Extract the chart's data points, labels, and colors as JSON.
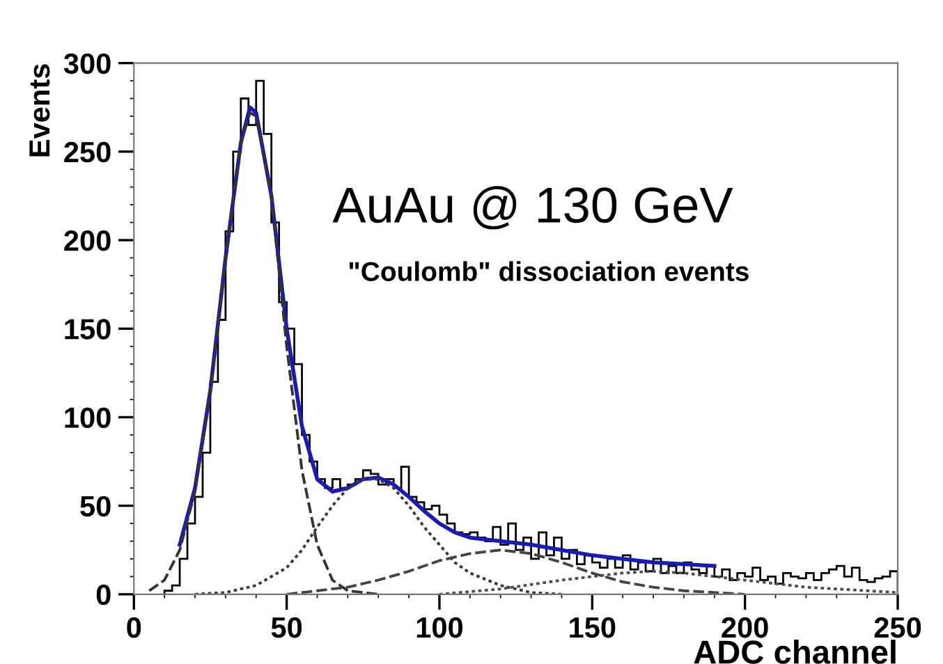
{
  "chart_data": {
    "type": "histogram",
    "xlabel": "ADC channel",
    "ylabel": "Events",
    "annotations": [
      "AuAu @ 130 GeV",
      "\"Coulomb\" dissociation events"
    ],
    "xlim": [
      0,
      250
    ],
    "ylim": [
      0,
      300
    ],
    "xticks": [
      0,
      50,
      100,
      150,
      200,
      250
    ],
    "yticks": [
      0,
      50,
      100,
      150,
      200,
      250,
      300
    ],
    "grid": false,
    "legend": false,
    "color": "#000000",
    "bins": [
      10,
      12.5,
      15,
      17.5,
      20,
      22.5,
      25,
      27.5,
      30,
      32.5,
      35,
      37.5,
      40,
      42.5,
      45,
      47.5,
      50,
      52.5,
      55,
      57.5,
      60,
      62.5,
      65,
      67.5,
      70,
      72.5,
      75,
      77.5,
      80,
      82.5,
      85,
      87.5,
      90,
      92.5,
      95,
      97.5,
      100,
      102.5,
      105,
      107.5,
      110,
      112.5,
      115,
      117.5,
      120,
      122.5,
      125,
      127.5,
      130,
      132.5,
      135,
      137.5,
      140,
      142.5,
      145,
      147.5,
      150,
      152.5,
      155,
      157.5,
      160,
      162.5,
      165,
      167.5,
      170,
      172.5,
      175,
      177.5,
      180,
      182.5,
      185,
      187.5,
      190,
      192.5,
      195,
      197.5,
      200,
      202.5,
      205,
      207.5,
      210,
      212.5,
      215,
      217.5,
      220,
      222.5,
      225,
      227.5,
      230,
      232.5,
      235,
      237.5,
      240,
      242.5,
      245,
      247.5,
      250
    ],
    "values": [
      2,
      5,
      20,
      40,
      55,
      80,
      120,
      155,
      205,
      250,
      280,
      265,
      290,
      260,
      210,
      165,
      150,
      130,
      90,
      75,
      65,
      60,
      65,
      60,
      62,
      65,
      70,
      68,
      62,
      65,
      60,
      72,
      55,
      52,
      48,
      50,
      45,
      40,
      35,
      34,
      35,
      32,
      30,
      38,
      28,
      40,
      25,
      32,
      20,
      35,
      22,
      32,
      20,
      25,
      17,
      22,
      18,
      15,
      20,
      15,
      22,
      14,
      18,
      13,
      20,
      12,
      16,
      12,
      18,
      14,
      12,
      16,
      10,
      14,
      8,
      12,
      10,
      15,
      8,
      10,
      6,
      12,
      10,
      9,
      12,
      8,
      12,
      14,
      16,
      10,
      15,
      8,
      7,
      9,
      10,
      13
    ],
    "series": [
      {
        "type": "line",
        "color": "#1a1ab4",
        "line_style": "solid",
        "x": [
          15,
          20,
          25,
          30,
          35,
          38,
          40,
          45,
          50,
          55,
          60,
          65,
          70,
          75,
          80,
          85,
          90,
          95,
          100,
          105,
          110,
          120,
          130,
          140,
          150,
          160,
          170,
          180,
          190
        ],
        "values": [
          28,
          60,
          115,
          190,
          255,
          275,
          272,
          225,
          150,
          95,
          65,
          58,
          60,
          65,
          66,
          62,
          55,
          47,
          40,
          35,
          32,
          30,
          28,
          25,
          22,
          20,
          18,
          17,
          16
        ]
      },
      {
        "type": "line",
        "color": "#333333",
        "line_style": "dashed",
        "x": [
          5,
          10,
          15,
          20,
          25,
          30,
          35,
          38,
          40,
          45,
          50,
          55,
          60,
          65,
          70,
          80
        ],
        "values": [
          2,
          8,
          25,
          58,
          115,
          190,
          255,
          272,
          270,
          225,
          140,
          70,
          28,
          8,
          2,
          0
        ]
      },
      {
        "type": "line",
        "color": "#3a3a3a",
        "line_style": "dotted",
        "x": [
          20,
          30,
          40,
          50,
          55,
          60,
          65,
          70,
          75,
          80,
          85,
          90,
          95,
          100,
          105,
          110,
          120,
          130,
          140
        ],
        "values": [
          0,
          1,
          5,
          15,
          25,
          38,
          50,
          60,
          65,
          65,
          60,
          50,
          38,
          28,
          18,
          12,
          5,
          1,
          0
        ]
      },
      {
        "type": "line",
        "color": "#444444",
        "line_style": "dashed",
        "x": [
          50,
          60,
          70,
          80,
          90,
          100,
          110,
          120,
          130,
          140,
          150,
          160,
          170,
          180,
          200
        ],
        "values": [
          0,
          2,
          4,
          8,
          13,
          19,
          23,
          25,
          23,
          18,
          12,
          7,
          4,
          2,
          0
        ]
      },
      {
        "type": "line",
        "color": "#4d4d4d",
        "line_style": "dotted",
        "x": [
          100,
          120,
          140,
          160,
          170,
          180,
          200,
          220,
          240,
          250
        ],
        "values": [
          0,
          3,
          8,
          12,
          13,
          12,
          8,
          4,
          2,
          1
        ]
      }
    ]
  }
}
